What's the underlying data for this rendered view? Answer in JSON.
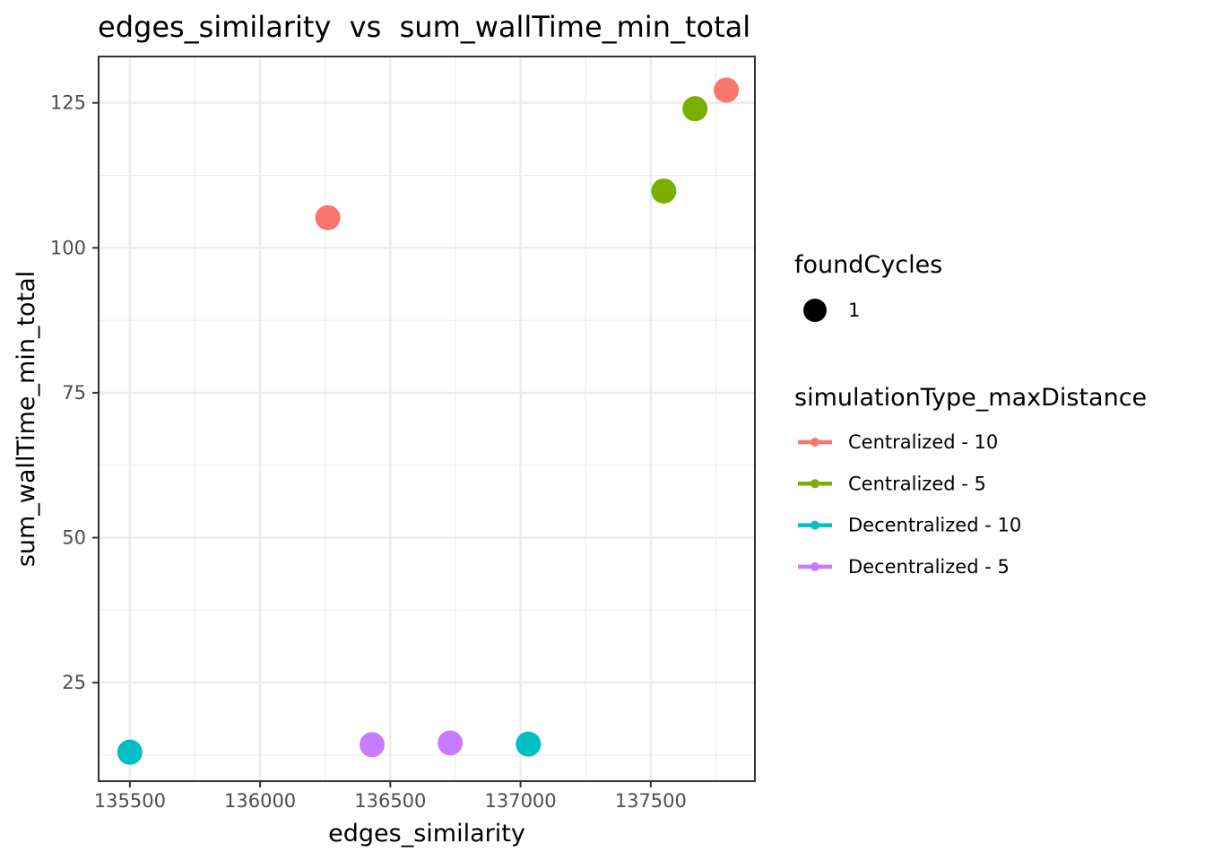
{
  "chart_data": {
    "type": "scatter",
    "title": "edges_similarity  vs  sum_wallTime_min_total",
    "xlabel": "edges_similarity",
    "ylabel": "sum_wallTime_min_total",
    "xlim": [
      135380,
      137900
    ],
    "ylim": [
      8,
      133
    ],
    "x_ticks": [
      135500,
      136000,
      136500,
      137000,
      137500
    ],
    "x_tick_labels": [
      "135500",
      "136000",
      "136500",
      "137000",
      "137500"
    ],
    "y_ticks": [
      25,
      50,
      75,
      100,
      125
    ],
    "y_tick_labels": [
      "25",
      "50",
      "75",
      "100",
      "125"
    ],
    "grid": true,
    "legend_position": "right",
    "size_legend": {
      "title": "foundCycles",
      "items": [
        {
          "label": "1",
          "color": "#000000"
        }
      ]
    },
    "color_legend": {
      "title": "simulationType_maxDistance"
    },
    "series": [
      {
        "name": "Centralized - 10",
        "color": "#F8766D",
        "points": [
          {
            "x": 136260,
            "y": 105.2
          },
          {
            "x": 137790,
            "y": 127.2
          }
        ]
      },
      {
        "name": "Centralized - 5",
        "color": "#7CAE00",
        "points": [
          {
            "x": 137550,
            "y": 109.8
          },
          {
            "x": 137670,
            "y": 124.0
          }
        ]
      },
      {
        "name": "Decentralized - 10",
        "color": "#00BFC4",
        "points": [
          {
            "x": 135500,
            "y": 13.0
          },
          {
            "x": 137030,
            "y": 14.4
          }
        ]
      },
      {
        "name": "Decentralized - 5",
        "color": "#C77CFF",
        "points": [
          {
            "x": 136430,
            "y": 14.3
          },
          {
            "x": 136730,
            "y": 14.6
          }
        ]
      }
    ]
  }
}
